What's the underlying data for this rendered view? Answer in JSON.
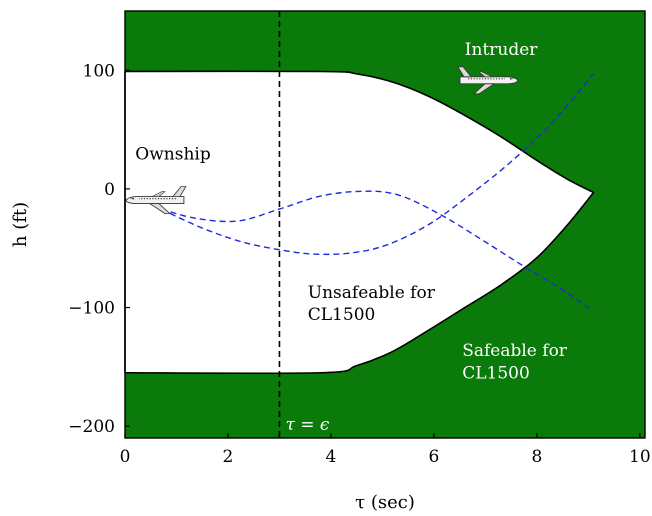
{
  "chart_data": {
    "type": "area",
    "xlabel": "τ (sec)",
    "ylabel": "h (ft)",
    "xlim": [
      0,
      10.1
    ],
    "ylim": [
      -210,
      150
    ],
    "x_ticks": [
      {
        "value": 0,
        "label": "0"
      },
      {
        "value": 2,
        "label": "2"
      },
      {
        "value": 4,
        "label": "4"
      },
      {
        "value": 6,
        "label": "6"
      },
      {
        "value": 8,
        "label": "8"
      },
      {
        "value": 10,
        "label": "10"
      }
    ],
    "y_ticks": [
      {
        "value": 100,
        "label": "100"
      },
      {
        "value": 0,
        "label": "0"
      },
      {
        "value": -100,
        "label": "−100"
      },
      {
        "value": -200,
        "label": "−200"
      }
    ],
    "grid": false,
    "colors": {
      "safeable": "#0a7a0a",
      "unsafeable": "#ffffff",
      "trajectory": "#1f2bd8"
    },
    "unsafeable_boundary": {
      "upper": [
        [
          0,
          99
        ],
        [
          3.8,
          99
        ],
        [
          4.5,
          97
        ],
        [
          5.2,
          90
        ],
        [
          5.9,
          78
        ],
        [
          6.6,
          62
        ],
        [
          7.3,
          44
        ],
        [
          8.0,
          24
        ],
        [
          8.6,
          8
        ],
        [
          9.1,
          -3
        ]
      ],
      "lower": [
        [
          0,
          -155
        ],
        [
          3.8,
          -155
        ],
        [
          4.5,
          -149
        ],
        [
          5.2,
          -137
        ],
        [
          5.9,
          -119
        ],
        [
          6.6,
          -100
        ],
        [
          7.3,
          -81
        ],
        [
          8.0,
          -58
        ],
        [
          8.6,
          -30
        ],
        [
          9.1,
          -3
        ]
      ]
    },
    "trajectories": [
      {
        "points": [
          [
            0.7,
            -17
          ],
          [
            1.4,
            -25
          ],
          [
            2.2,
            -27
          ],
          [
            3.0,
            -17
          ],
          [
            3.8,
            -6
          ],
          [
            4.6,
            -2
          ],
          [
            5.3,
            -5
          ],
          [
            6.1,
            -21
          ],
          [
            6.9,
            -42
          ],
          [
            7.7,
            -64
          ],
          [
            8.5,
            -85
          ],
          [
            9.1,
            -103
          ]
        ]
      },
      {
        "points": [
          [
            0.7,
            -17
          ],
          [
            1.5,
            -33
          ],
          [
            2.3,
            -45
          ],
          [
            3.1,
            -52
          ],
          [
            3.7,
            -55
          ],
          [
            4.4,
            -54
          ],
          [
            5.1,
            -47
          ],
          [
            5.9,
            -30
          ],
          [
            6.7,
            -5
          ],
          [
            7.5,
            23
          ],
          [
            8.3,
            56
          ],
          [
            9.1,
            97
          ]
        ]
      }
    ],
    "epsilon_line": {
      "x": 3.0,
      "label": "τ = ϵ"
    },
    "annotations": [
      {
        "name": "ownship",
        "text": "Ownship",
        "x": 0.2,
        "y": 25,
        "color": "#000000"
      },
      {
        "name": "intruder",
        "text": "Intruder",
        "x": 6.6,
        "y": 113,
        "color": "#ffffff"
      },
      {
        "name": "unsafeable",
        "lines": [
          "Unsafeable for",
          "CL1500"
        ],
        "x": 3.55,
        "y": -92,
        "color": "#000000"
      },
      {
        "name": "safeable",
        "lines": [
          "Safeable for",
          "CL1500"
        ],
        "x": 6.55,
        "y": -141,
        "color": "#ffffff"
      }
    ],
    "aircraft": [
      {
        "name": "ownship",
        "x": 0.6,
        "y": -9,
        "facing": "left"
      },
      {
        "name": "intruder",
        "x": 7.05,
        "y": 92,
        "facing": "right"
      }
    ]
  }
}
